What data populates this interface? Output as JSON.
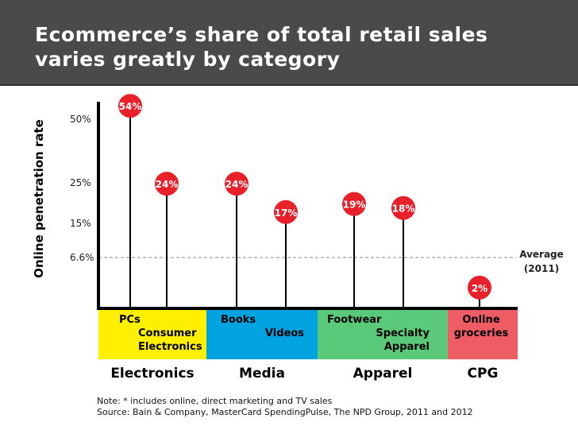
{
  "header": {
    "title_line1": "Ecommerce’s share of total retail sales",
    "title_line2": "varies greatly by category"
  },
  "colors": {
    "header_bg": "#4a4a4a",
    "marker": "#e8202a",
    "electronics": "#ffef00",
    "media": "#00a3e0",
    "apparel": "#5bc97a",
    "cpg": "#ef5d64",
    "average_line": "#888888"
  },
  "chart_data": {
    "type": "lollipop",
    "ylabel": "Online penetration rate",
    "y_ticks": [
      "50%",
      "25%",
      "15%",
      "6.6%"
    ],
    "y_tick_values": [
      50,
      25,
      15,
      6.6
    ],
    "ylim": [
      0,
      60
    ],
    "average": {
      "value": 6.6,
      "label_line1": "Average",
      "label_line2": "(2011)"
    },
    "points": [
      {
        "label_lines": [
          "PCs"
        ],
        "value": 54,
        "value_label": "54%",
        "group": "Electronics"
      },
      {
        "label_lines": [
          "Consumer",
          "Electronics"
        ],
        "value": 24,
        "value_label": "24%",
        "group": "Electronics"
      },
      {
        "label_lines": [
          "Books"
        ],
        "value": 24,
        "value_label": "24%",
        "group": "Media"
      },
      {
        "label_lines": [
          "Videos"
        ],
        "value": 17,
        "value_label": "17%",
        "group": "Media"
      },
      {
        "label_lines": [
          "Footwear"
        ],
        "value": 19,
        "value_label": "19%",
        "group": "Apparel"
      },
      {
        "label_lines": [
          "Specialty",
          "Apparel"
        ],
        "value": 18,
        "value_label": "18%",
        "group": "Apparel"
      },
      {
        "label_lines": [
          "Online",
          "groceries"
        ],
        "value": 2,
        "value_label": "2%",
        "group": "CPG"
      }
    ],
    "groups": [
      "Electronics",
      "Media",
      "Apparel",
      "CPG"
    ]
  },
  "notes": {
    "note": "Note: * includes online, direct marketing and TV sales",
    "source": "Source: Bain & Company,  MasterCard SpendingPulse, The NPD Group, 2011 and 2012"
  }
}
